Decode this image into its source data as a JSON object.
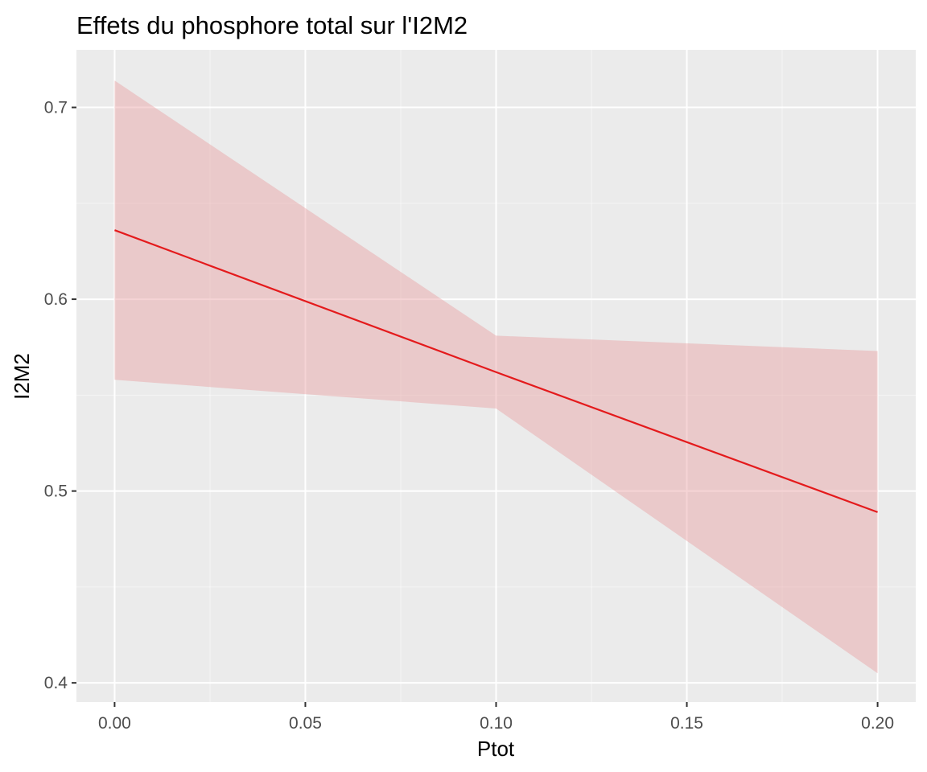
{
  "chart_data": {
    "type": "line",
    "title": "Effets du phosphore total sur l'I2M2",
    "xlabel": "Ptot",
    "ylabel": "I2M2",
    "xlim": [
      -0.01,
      0.21
    ],
    "ylim": [
      0.39,
      0.73
    ],
    "x_ticks": [
      0.0,
      0.05,
      0.1,
      0.15,
      0.2
    ],
    "x_tick_labels": [
      "0.00",
      "0.05",
      "0.10",
      "0.15",
      "0.20"
    ],
    "x_minor_ticks": [
      0.025,
      0.075,
      0.125,
      0.175
    ],
    "y_ticks": [
      0.4,
      0.5,
      0.6,
      0.7
    ],
    "y_tick_labels": [
      "0.4",
      "0.5",
      "0.6",
      "0.7"
    ],
    "y_minor_ticks": [
      0.45,
      0.55,
      0.65
    ],
    "grid": true,
    "series": [
      {
        "x": [
          0.0,
          0.1,
          0.2
        ],
        "y": [
          0.636,
          0.562,
          0.489
        ],
        "lower": [
          0.558,
          0.543,
          0.405
        ],
        "upper": [
          0.714,
          0.581,
          0.573
        ],
        "line_color": "#e41a1c",
        "band_color": "#e8a0a2"
      }
    ],
    "colors": {
      "panel_background": "#ebebeb",
      "grid_major": "#ffffff",
      "tick_text": "#4d4d4d"
    }
  }
}
